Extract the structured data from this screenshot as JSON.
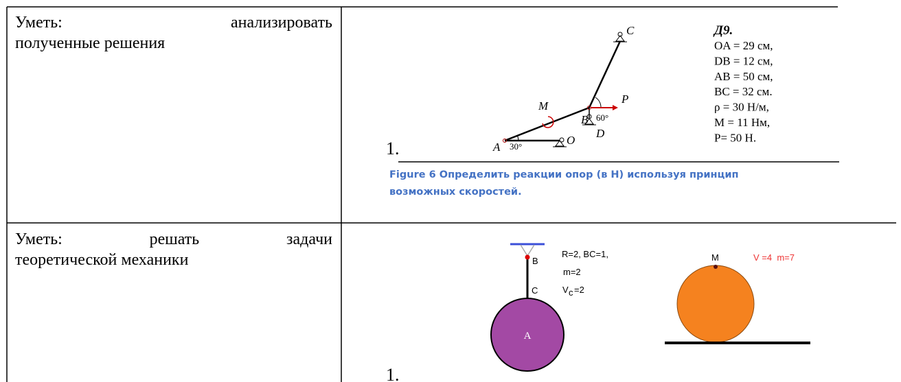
{
  "table": {
    "rows": [
      {
        "skill_lines": [
          "Уметь: анализировать",
          "полученные решения"
        ],
        "item_number": "1.",
        "figure": {
          "title": "Д9.",
          "givens": [
            "OA = 29 см,",
            "DB = 12 см,",
            "AB = 50 см,",
            "BC = 32 см.",
            "ρ = 30 Н/м,",
            "M = 11 Нм,",
            "P= 50 Н."
          ],
          "labels": {
            "c": "C",
            "p": "P",
            "angle_b": "60°",
            "b": "B",
            "d": "D",
            "m": "M",
            "a": "A",
            "angle_a": "30°",
            "o": "O"
          }
        },
        "caption": "Figure 6 Определить реакции опор (в Н) используя принцип возможных скоростей."
      },
      {
        "skill_lines": [
          "Уметь: решать задачи",
          "теоретической механики"
        ],
        "item_number": "1.",
        "figure": {
          "labels": {
            "b": "B",
            "c": "C",
            "a": "A",
            "m": "M"
          },
          "params_left": [
            "R=2, BC=1,",
            "m=2"
          ],
          "velocity": {
            "symbol": "V",
            "subscript": "c",
            "value": "=2"
          },
          "params_right": "V =4  m=7"
        }
      }
    ]
  }
}
